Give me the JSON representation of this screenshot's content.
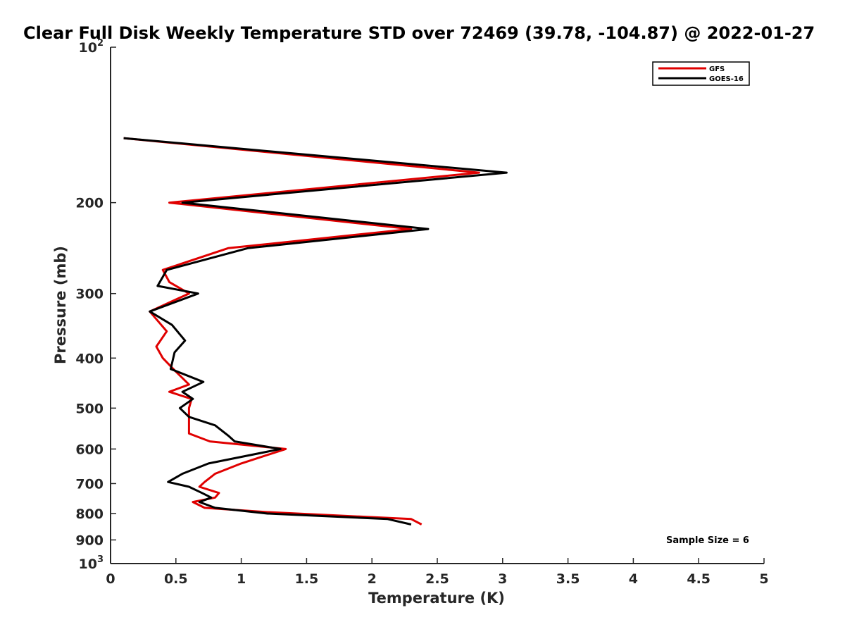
{
  "chart_data": {
    "type": "line",
    "title": "Clear Full Disk Weekly Temperature STD over 72469 (39.78, -104.87) @ 2022-01-27",
    "xlabel": "Temperature (K)",
    "ylabel": "Pressure (mb)",
    "xlim": [
      0,
      5
    ],
    "ylim": [
      100,
      1000
    ],
    "y_scale": "log",
    "y_reversed": true,
    "grid": false,
    "legend_position": "top-right",
    "x_ticks": [
      "0",
      "0.5",
      "1",
      "1.5",
      "2",
      "2.5",
      "3",
      "3.5",
      "4",
      "4.5",
      "5"
    ],
    "y_ticks": [
      {
        "value": 100,
        "base": "10",
        "exp": "2"
      },
      {
        "value": 200,
        "label": "200"
      },
      {
        "value": 300,
        "label": "300"
      },
      {
        "value": 400,
        "label": "400"
      },
      {
        "value": 500,
        "label": "500"
      },
      {
        "value": 600,
        "label": "600"
      },
      {
        "value": 700,
        "label": "700"
      },
      {
        "value": 800,
        "label": "800"
      },
      {
        "value": 900,
        "label": "900"
      },
      {
        "value": 1000,
        "base": "10",
        "exp": "3"
      }
    ],
    "annotation": "Sample Size = 6",
    "series": [
      {
        "name": "GFS",
        "color": "#e00000",
        "points": [
          {
            "x": 0.1,
            "y": 150
          },
          {
            "x": 2.82,
            "y": 175
          },
          {
            "x": 0.45,
            "y": 200
          },
          {
            "x": 2.3,
            "y": 225
          },
          {
            "x": 0.9,
            "y": 245
          },
          {
            "x": 0.4,
            "y": 270
          },
          {
            "x": 0.45,
            "y": 285
          },
          {
            "x": 0.6,
            "y": 300
          },
          {
            "x": 0.3,
            "y": 325
          },
          {
            "x": 0.43,
            "y": 355
          },
          {
            "x": 0.35,
            "y": 380
          },
          {
            "x": 0.4,
            "y": 400
          },
          {
            "x": 0.5,
            "y": 425
          },
          {
            "x": 0.6,
            "y": 450
          },
          {
            "x": 0.45,
            "y": 465
          },
          {
            "x": 0.62,
            "y": 480
          },
          {
            "x": 0.6,
            "y": 500
          },
          {
            "x": 0.6,
            "y": 540
          },
          {
            "x": 0.6,
            "y": 560
          },
          {
            "x": 0.76,
            "y": 580
          },
          {
            "x": 1.34,
            "y": 600
          },
          {
            "x": 1.0,
            "y": 640
          },
          {
            "x": 0.8,
            "y": 670
          },
          {
            "x": 0.72,
            "y": 695
          },
          {
            "x": 0.68,
            "y": 710
          },
          {
            "x": 0.83,
            "y": 730
          },
          {
            "x": 0.8,
            "y": 745
          },
          {
            "x": 0.63,
            "y": 760
          },
          {
            "x": 0.72,
            "y": 780
          },
          {
            "x": 1.2,
            "y": 795
          },
          {
            "x": 2.3,
            "y": 820
          },
          {
            "x": 2.38,
            "y": 840
          }
        ]
      },
      {
        "name": "GOES-16",
        "color": "#000000",
        "points": [
          {
            "x": 0.1,
            "y": 150
          },
          {
            "x": 3.03,
            "y": 175
          },
          {
            "x": 0.55,
            "y": 200
          },
          {
            "x": 2.43,
            "y": 225
          },
          {
            "x": 1.05,
            "y": 245
          },
          {
            "x": 0.43,
            "y": 270
          },
          {
            "x": 0.36,
            "y": 290
          },
          {
            "x": 0.67,
            "y": 300
          },
          {
            "x": 0.3,
            "y": 325
          },
          {
            "x": 0.47,
            "y": 345
          },
          {
            "x": 0.57,
            "y": 370
          },
          {
            "x": 0.49,
            "y": 390
          },
          {
            "x": 0.46,
            "y": 420
          },
          {
            "x": 0.71,
            "y": 445
          },
          {
            "x": 0.55,
            "y": 465
          },
          {
            "x": 0.63,
            "y": 480
          },
          {
            "x": 0.53,
            "y": 500
          },
          {
            "x": 0.6,
            "y": 520
          },
          {
            "x": 0.8,
            "y": 540
          },
          {
            "x": 0.9,
            "y": 565
          },
          {
            "x": 0.95,
            "y": 580
          },
          {
            "x": 1.3,
            "y": 600
          },
          {
            "x": 0.75,
            "y": 640
          },
          {
            "x": 0.55,
            "y": 670
          },
          {
            "x": 0.44,
            "y": 695
          },
          {
            "x": 0.6,
            "y": 710
          },
          {
            "x": 0.7,
            "y": 730
          },
          {
            "x": 0.77,
            "y": 745
          },
          {
            "x": 0.68,
            "y": 760
          },
          {
            "x": 0.8,
            "y": 780
          },
          {
            "x": 1.2,
            "y": 800
          },
          {
            "x": 2.12,
            "y": 820
          },
          {
            "x": 2.3,
            "y": 840
          }
        ]
      }
    ]
  }
}
